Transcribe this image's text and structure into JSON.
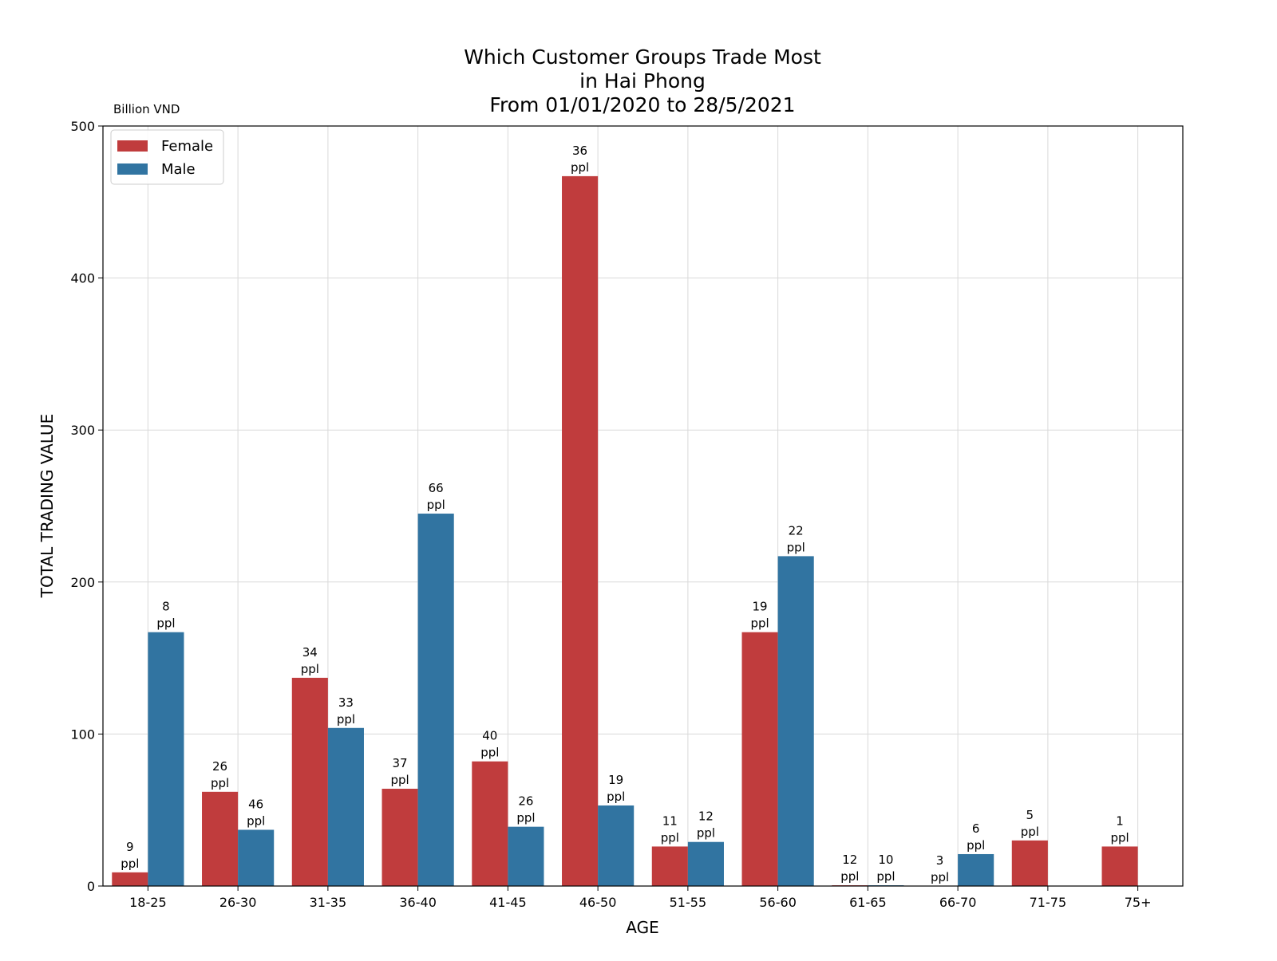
{
  "chart_data": {
    "type": "bar",
    "title": [
      "Which Customer Groups Trade Most",
      "in Hai Phong",
      "From 01/01/2020 to 28/5/2021"
    ],
    "unit_label": "Billion VND",
    "xlabel": "AGE",
    "ylabel": "TOTAL TRADING VALUE",
    "ylim": [
      0,
      500
    ],
    "yticks": [
      "0",
      "100",
      "200",
      "300",
      "400",
      "500"
    ],
    "grid": true,
    "legend_position": "top-left",
    "categories": [
      "18-25",
      "26-30",
      "31-35",
      "36-40",
      "41-45",
      "46-50",
      "51-55",
      "56-60",
      "61-65",
      "66-70",
      "71-75",
      "75+"
    ],
    "series": [
      {
        "name": "Female",
        "color": "#c03c3d",
        "values": [
          9,
          62,
          137,
          64,
          82,
          467,
          26,
          167,
          0.5,
          0,
          30,
          26
        ],
        "labels": [
          [
            "9",
            "ppl"
          ],
          [
            "26",
            "ppl"
          ],
          [
            "34",
            "ppl"
          ],
          [
            "37",
            "ppl"
          ],
          [
            "40",
            "ppl"
          ],
          [
            "36",
            "ppl"
          ],
          [
            "11",
            "ppl"
          ],
          [
            "19",
            "ppl"
          ],
          [
            "12",
            "ppl"
          ],
          [
            "3",
            "ppl"
          ],
          [
            "5",
            "ppl"
          ],
          [
            "1",
            "ppl"
          ]
        ]
      },
      {
        "name": "Male",
        "color": "#3174a1",
        "values": [
          167,
          37,
          104,
          245,
          39,
          53,
          29,
          217,
          0.5,
          21,
          0,
          0
        ],
        "labels": [
          [
            "8",
            "ppl"
          ],
          [
            "46",
            "ppl"
          ],
          [
            "33",
            "ppl"
          ],
          [
            "66",
            "ppl"
          ],
          [
            "26",
            "ppl"
          ],
          [
            "19",
            "ppl"
          ],
          [
            "12",
            "ppl"
          ],
          [
            "22",
            "ppl"
          ],
          [
            "10",
            "ppl"
          ],
          [
            "6",
            "ppl"
          ],
          null,
          null
        ]
      }
    ]
  }
}
